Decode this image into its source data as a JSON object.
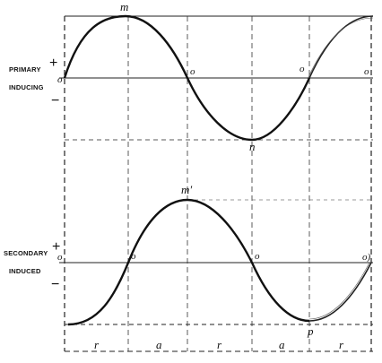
{
  "diagram": {
    "upper": {
      "label_line1": "PRIMARY",
      "label_line2": "INDUCING",
      "plus": "+",
      "minus": "−",
      "peak_label": "m",
      "trough_label": "n",
      "zero_labels": [
        "o",
        "o",
        "o",
        "o"
      ]
    },
    "lower": {
      "label_line1": "SECONDARY",
      "label_line2": "INDUCED",
      "plus": "+",
      "minus": "−",
      "peak_label": "m′",
      "trough_label": "p",
      "zero_labels": [
        "o",
        "o",
        "o",
        "o)"
      ]
    },
    "bottom_labels": [
      "r",
      "a",
      "r",
      "a",
      "r"
    ]
  }
}
